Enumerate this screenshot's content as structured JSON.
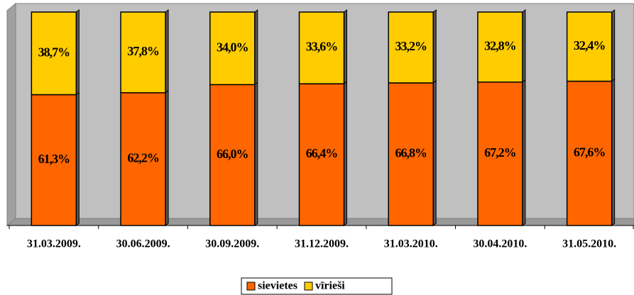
{
  "chart_data": {
    "type": "stacked_bar",
    "categories": [
      "31.03.2009.",
      "30.06.2009.",
      "30.09.2009.",
      "31.12.2009.",
      "31.03.2010.",
      "30.04.2010.",
      "31.05.2010."
    ],
    "series": [
      {
        "name": "sievietes",
        "color": "#ff6600",
        "values": [
          61.3,
          62.2,
          66.0,
          66.4,
          66.8,
          67.2,
          67.6
        ],
        "value_labels": [
          "61,3%",
          "62,2%",
          "66,0%",
          "66,4%",
          "66,8%",
          "67,2%",
          "67,6%"
        ]
      },
      {
        "name": "vīrieši",
        "color": "#ffcc00",
        "values": [
          38.7,
          37.8,
          34.0,
          33.6,
          33.2,
          32.8,
          32.4
        ],
        "value_labels": [
          "38,7%",
          "37,8%",
          "34,0%",
          "33,6%",
          "33,2%",
          "32,8%",
          "32,4%"
        ]
      }
    ],
    "ylim": [
      0,
      100
    ],
    "legend": "bottom"
  }
}
